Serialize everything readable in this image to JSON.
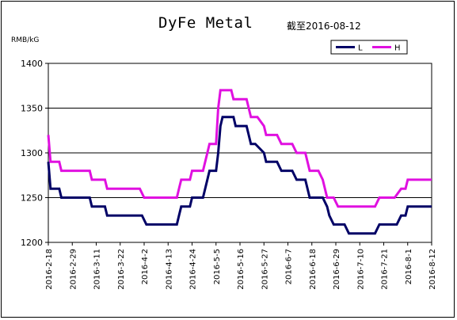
{
  "chart_data": {
    "type": "line",
    "title": "DyFe Metal",
    "subtitle": "截至2016-08-12",
    "ylabel": "RMB/kG",
    "xlabel": "",
    "ylim": [
      1200,
      1400
    ],
    "yticks": [
      1200,
      1250,
      1300,
      1350,
      1400
    ],
    "grid": true,
    "legend_position": "top-right",
    "x_tick_labels": [
      "2016-2-18",
      "2016-2-29",
      "2016-3-11",
      "2016-3-22",
      "2016-4-2",
      "2016-4-13",
      "2016-4-24",
      "2016-5-5",
      "2016-5-16",
      "2016-5-27",
      "2016-6-7",
      "2016-6-18",
      "2016-6-29",
      "2016-7-10",
      "2016-7-21",
      "2016-8-1",
      "2016-8-12"
    ],
    "series": [
      {
        "name": "L",
        "color": "#000066",
        "points": [
          [
            "2016-02-18",
            1290
          ],
          [
            "2016-02-19",
            1260
          ],
          [
            "2016-02-23",
            1260
          ],
          [
            "2016-02-24",
            1250
          ],
          [
            "2016-03-08",
            1250
          ],
          [
            "2016-03-09",
            1240
          ],
          [
            "2016-03-15",
            1240
          ],
          [
            "2016-03-16",
            1230
          ],
          [
            "2016-04-01",
            1230
          ],
          [
            "2016-04-03",
            1220
          ],
          [
            "2016-04-17",
            1220
          ],
          [
            "2016-04-18",
            1230
          ],
          [
            "2016-04-19",
            1240
          ],
          [
            "2016-04-23",
            1240
          ],
          [
            "2016-04-24",
            1250
          ],
          [
            "2016-04-29",
            1250
          ],
          [
            "2016-05-01",
            1270
          ],
          [
            "2016-05-02",
            1280
          ],
          [
            "2016-05-05",
            1280
          ],
          [
            "2016-05-06",
            1300
          ],
          [
            "2016-05-07",
            1330
          ],
          [
            "2016-05-08",
            1340
          ],
          [
            "2016-05-13",
            1340
          ],
          [
            "2016-05-14",
            1330
          ],
          [
            "2016-05-19",
            1330
          ],
          [
            "2016-05-21",
            1310
          ],
          [
            "2016-05-23",
            1310
          ],
          [
            "2016-05-27",
            1300
          ],
          [
            "2016-05-28",
            1290
          ],
          [
            "2016-06-02",
            1290
          ],
          [
            "2016-06-04",
            1280
          ],
          [
            "2016-06-09",
            1280
          ],
          [
            "2016-06-11",
            1270
          ],
          [
            "2016-06-15",
            1270
          ],
          [
            "2016-06-17",
            1250
          ],
          [
            "2016-06-23",
            1250
          ],
          [
            "2016-06-25",
            1240
          ],
          [
            "2016-06-26",
            1230
          ],
          [
            "2016-06-28",
            1220
          ],
          [
            "2016-07-03",
            1220
          ],
          [
            "2016-07-05",
            1210
          ],
          [
            "2016-07-17",
            1210
          ],
          [
            "2016-07-19",
            1220
          ],
          [
            "2016-07-27",
            1220
          ],
          [
            "2016-07-29",
            1230
          ],
          [
            "2016-07-31",
            1230
          ],
          [
            "2016-08-01",
            1240
          ],
          [
            "2016-08-12",
            1240
          ]
        ]
      },
      {
        "name": "H",
        "color": "#E010E0",
        "points": [
          [
            "2016-02-18",
            1320
          ],
          [
            "2016-02-19",
            1290
          ],
          [
            "2016-02-23",
            1290
          ],
          [
            "2016-02-24",
            1280
          ],
          [
            "2016-03-08",
            1280
          ],
          [
            "2016-03-09",
            1270
          ],
          [
            "2016-03-15",
            1270
          ],
          [
            "2016-03-16",
            1260
          ],
          [
            "2016-03-31",
            1260
          ],
          [
            "2016-04-02",
            1250
          ],
          [
            "2016-04-17",
            1250
          ],
          [
            "2016-04-18",
            1260
          ],
          [
            "2016-04-19",
            1270
          ],
          [
            "2016-04-23",
            1270
          ],
          [
            "2016-04-24",
            1280
          ],
          [
            "2016-04-29",
            1280
          ],
          [
            "2016-05-01",
            1300
          ],
          [
            "2016-05-02",
            1310
          ],
          [
            "2016-05-05",
            1310
          ],
          [
            "2016-05-06",
            1350
          ],
          [
            "2016-05-07",
            1370
          ],
          [
            "2016-05-12",
            1370
          ],
          [
            "2016-05-13",
            1360
          ],
          [
            "2016-05-19",
            1360
          ],
          [
            "2016-05-21",
            1340
          ],
          [
            "2016-05-24",
            1340
          ],
          [
            "2016-05-27",
            1330
          ],
          [
            "2016-05-28",
            1320
          ],
          [
            "2016-06-02",
            1320
          ],
          [
            "2016-06-04",
            1310
          ],
          [
            "2016-06-09",
            1310
          ],
          [
            "2016-06-11",
            1300
          ],
          [
            "2016-06-15",
            1300
          ],
          [
            "2016-06-17",
            1280
          ],
          [
            "2016-06-21",
            1280
          ],
          [
            "2016-06-23",
            1270
          ],
          [
            "2016-06-25",
            1250
          ],
          [
            "2016-06-28",
            1250
          ],
          [
            "2016-06-30",
            1240
          ],
          [
            "2016-07-17",
            1240
          ],
          [
            "2016-07-19",
            1250
          ],
          [
            "2016-07-26",
            1250
          ],
          [
            "2016-07-29",
            1260
          ],
          [
            "2016-07-31",
            1260
          ],
          [
            "2016-08-01",
            1270
          ],
          [
            "2016-08-12",
            1270
          ]
        ]
      }
    ]
  }
}
